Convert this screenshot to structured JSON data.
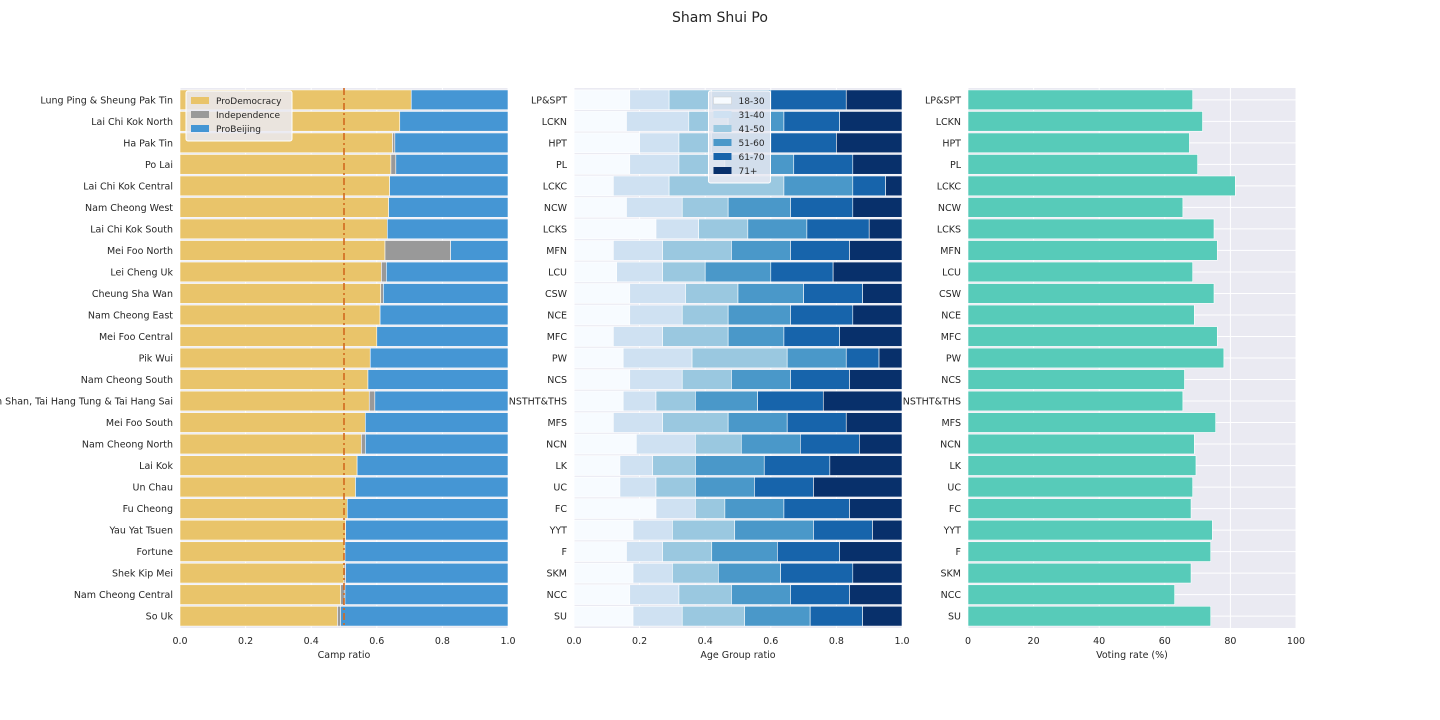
{
  "title": "Sham Shui Po",
  "chart_data": [
    {
      "type": "bar",
      "orientation": "horizontal",
      "stacked": true,
      "xlabel": "Camp ratio",
      "xlim": [
        0,
        1
      ],
      "xticks": [
        "0.0",
        "0.2",
        "0.4",
        "0.6",
        "0.8",
        "1.0"
      ],
      "reference_line": {
        "x": 0.5,
        "style": "dash-dot",
        "color": "#d2691e"
      },
      "legend": "top-left",
      "categories": [
        "Lung Ping & Sheung Pak Tin",
        "Lai Chi Kok North",
        "Ha Pak Tin",
        "Po Lai",
        "Lai Chi Kok Central",
        "Nam Cheong West",
        "Lai Chi Kok South",
        "Mei Foo North",
        "Lei Cheng Uk",
        "Cheung Sha Wan",
        "Nam Cheong East",
        "Mei Foo Central",
        "Pik Wui",
        "Nam Cheong South",
        "Nam Shan, Tai Hang Tung & Tai Hang Sai",
        "Mei Foo South",
        "Nam Cheong North",
        "Lai Kok",
        "Un Chau",
        "Fu Cheong",
        "Yau Yat Tsuen",
        "Fortune",
        "Shek Kip Mei",
        "Nam Cheong Central",
        "So Uk"
      ],
      "series": [
        {
          "name": "ProDemocracy",
          "color": "#e9c46a",
          "values": [
            0.705,
            0.67,
            0.648,
            0.643,
            0.639,
            0.636,
            0.632,
            0.625,
            0.614,
            0.612,
            0.61,
            0.6,
            0.58,
            0.573,
            0.577,
            0.565,
            0.553,
            0.54,
            0.535,
            0.51,
            0.505,
            0.503,
            0.5,
            0.49,
            0.48
          ]
        },
        {
          "name": "Independence",
          "color": "#999999",
          "values": [
            0.0,
            0.0,
            0.007,
            0.015,
            0.0,
            0.0,
            0.0,
            0.2,
            0.015,
            0.008,
            0.0,
            0.0,
            0.0,
            0.0,
            0.017,
            0.0,
            0.012,
            0.0,
            0.0,
            0.0,
            0.0,
            0.0,
            0.005,
            0.013,
            0.01
          ]
        },
        {
          "name": "ProBeijing",
          "color": "#4596d4",
          "values": [
            0.295,
            0.33,
            0.345,
            0.342,
            0.361,
            0.364,
            0.368,
            0.175,
            0.371,
            0.38,
            0.39,
            0.4,
            0.42,
            0.427,
            0.406,
            0.435,
            0.435,
            0.46,
            0.465,
            0.49,
            0.495,
            0.497,
            0.495,
            0.497,
            0.51
          ]
        }
      ]
    },
    {
      "type": "bar",
      "orientation": "horizontal",
      "stacked": true,
      "xlabel": "Age Group ratio",
      "xlim": [
        0,
        1
      ],
      "xticks": [
        "0.0",
        "0.2",
        "0.4",
        "0.6",
        "0.8",
        "1.0"
      ],
      "legend": "top-center",
      "categories": [
        "LP&SPT",
        "LCKN",
        "HPT",
        "PL",
        "LCKC",
        "NCW",
        "LCKS",
        "MFN",
        "LCU",
        "CSW",
        "NCE",
        "MFC",
        "PW",
        "NCS",
        "NSTHT&THS",
        "MFS",
        "NCN",
        "LK",
        "UC",
        "FC",
        "YYT",
        "F",
        "SKM",
        "NCC",
        "SU"
      ],
      "series": [
        {
          "name": "18-30",
          "color": "#f7fbff",
          "values": [
            0.17,
            0.16,
            0.2,
            0.17,
            0.12,
            0.16,
            0.25,
            0.12,
            0.13,
            0.17,
            0.17,
            0.12,
            0.15,
            0.17,
            0.15,
            0.12,
            0.19,
            0.14,
            0.14,
            0.25,
            0.18,
            0.16,
            0.18,
            0.17,
            0.18
          ]
        },
        {
          "name": "31-40",
          "color": "#cfe1f2",
          "values": [
            0.12,
            0.19,
            0.12,
            0.15,
            0.17,
            0.17,
            0.13,
            0.15,
            0.14,
            0.17,
            0.16,
            0.15,
            0.21,
            0.16,
            0.1,
            0.15,
            0.18,
            0.1,
            0.11,
            0.12,
            0.12,
            0.11,
            0.12,
            0.15,
            0.15
          ]
        },
        {
          "name": "41-50",
          "color": "#9ac8e0",
          "values": [
            0.13,
            0.12,
            0.1,
            0.14,
            0.35,
            0.14,
            0.15,
            0.21,
            0.13,
            0.16,
            0.14,
            0.2,
            0.29,
            0.15,
            0.12,
            0.2,
            0.14,
            0.13,
            0.12,
            0.09,
            0.19,
            0.15,
            0.14,
            0.16,
            0.19
          ]
        },
        {
          "name": "51-60",
          "color": "#4a98c9",
          "values": [
            0.18,
            0.17,
            0.18,
            0.21,
            0.21,
            0.19,
            0.18,
            0.18,
            0.2,
            0.2,
            0.19,
            0.17,
            0.18,
            0.18,
            0.19,
            0.18,
            0.18,
            0.21,
            0.18,
            0.18,
            0.24,
            0.2,
            0.19,
            0.18,
            0.2
          ]
        },
        {
          "name": "61-70",
          "color": "#1764ab",
          "values": [
            0.23,
            0.17,
            0.2,
            0.18,
            0.1,
            0.19,
            0.19,
            0.18,
            0.19,
            0.18,
            0.19,
            0.17,
            0.1,
            0.18,
            0.2,
            0.18,
            0.18,
            0.2,
            0.18,
            0.2,
            0.18,
            0.19,
            0.22,
            0.18,
            0.16
          ]
        },
        {
          "name": "71+",
          "color": "#08306b",
          "values": [
            0.17,
            0.19,
            0.2,
            0.15,
            0.05,
            0.15,
            0.1,
            0.16,
            0.21,
            0.12,
            0.15,
            0.19,
            0.07,
            0.16,
            0.24,
            0.17,
            0.13,
            0.22,
            0.27,
            0.16,
            0.09,
            0.19,
            0.15,
            0.16,
            0.12
          ]
        }
      ]
    },
    {
      "type": "bar",
      "orientation": "horizontal",
      "xlabel": "Voting rate (%)",
      "xlim": [
        0,
        100
      ],
      "xticks": [
        "0",
        "20",
        "40",
        "60",
        "80",
        "100"
      ],
      "grid": true,
      "color": "#57cbb9",
      "categories": [
        "LP&SPT",
        "LCKN",
        "HPT",
        "PL",
        "LCKC",
        "NCW",
        "LCKS",
        "MFN",
        "LCU",
        "CSW",
        "NCE",
        "MFC",
        "PW",
        "NCS",
        "NSTHT&THS",
        "MFS",
        "NCN",
        "LK",
        "UC",
        "FC",
        "YYT",
        "F",
        "SKM",
        "NCC",
        "SU"
      ],
      "values": [
        68.5,
        71.5,
        67.5,
        70,
        81.5,
        65.5,
        75,
        76,
        68.5,
        75,
        69,
        76,
        78,
        66,
        65.5,
        75.5,
        69,
        69.5,
        68.5,
        68,
        74.5,
        74,
        68,
        63,
        74
      ]
    }
  ]
}
